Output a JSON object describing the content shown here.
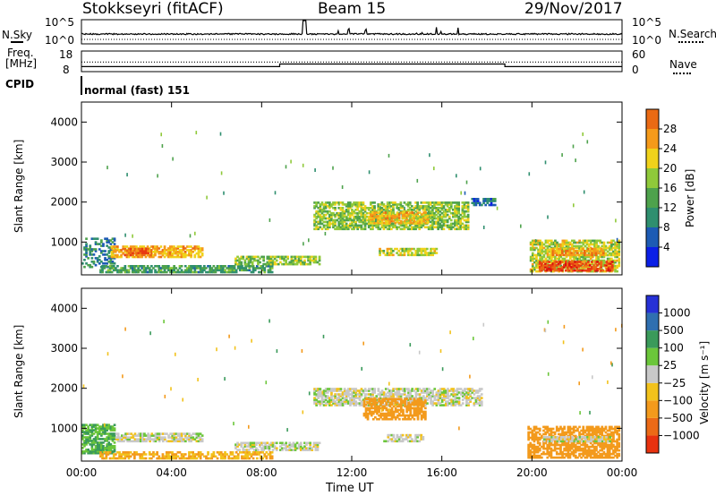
{
  "header": {
    "station": "Stokkseyri (fitACF)",
    "beam": "Beam 15",
    "date": "29/Nov/2017"
  },
  "noise_panel": {
    "left_label": "N.Sky",
    "left_ticks": [
      "10^5",
      "10^0"
    ],
    "right_label": "N.Search",
    "right_ticks": [
      "10^5",
      "10^0"
    ]
  },
  "freq_panel": {
    "left_label_1": "Freq.",
    "left_label_2": "[MHz]",
    "left_ticks": [
      "18",
      "8"
    ],
    "right_label": "Nave",
    "right_ticks": [
      "60",
      "0"
    ]
  },
  "cpid": {
    "label": "CPID",
    "value": "normal (fast) 151"
  },
  "chart_data": [
    {
      "type": "heatmap",
      "name": "power",
      "ylabel": "Slant Range [km]",
      "yticks": [
        "1000",
        "2000",
        "3000",
        "4000"
      ],
      "ylim": [
        180,
        4500
      ],
      "xlim": [
        0,
        24
      ],
      "colorbar": {
        "label": "Power [dB]",
        "ticks": [
          "4",
          "8",
          "12",
          "16",
          "20",
          "24",
          "28"
        ],
        "range": [
          0,
          32
        ],
        "colors": [
          "#0b1fe6",
          "#1d5bb4",
          "#2f8f6f",
          "#4ea24c",
          "#8fc93a",
          "#f0d21b",
          "#f59a1a",
          "#ea6a14",
          "#e83a12",
          "#d70f0f"
        ]
      },
      "regions": [
        {
          "t": [
            0.0,
            1.5
          ],
          "r": [
            350,
            1100
          ],
          "value": 8,
          "note": "scatter"
        },
        {
          "t": [
            1.3,
            5.4
          ],
          "r": [
            600,
            900
          ],
          "value": 20
        },
        {
          "t": [
            1.8,
            3.0
          ],
          "r": [
            650,
            850
          ],
          "value": 24
        },
        {
          "t": [
            0.8,
            8.5
          ],
          "r": [
            220,
            420
          ],
          "value": 10
        },
        {
          "t": [
            6.8,
            10.6
          ],
          "r": [
            420,
            650
          ],
          "value": 14
        },
        {
          "t": [
            10.3,
            17.2
          ],
          "r": [
            1300,
            2000
          ],
          "value": 14
        },
        {
          "t": [
            12.8,
            15.4
          ],
          "r": [
            1450,
            1750
          ],
          "value": 19
        },
        {
          "t": [
            17.3,
            18.4
          ],
          "r": [
            1900,
            2100
          ],
          "value": 6
        },
        {
          "t": [
            13.2,
            15.8
          ],
          "r": [
            650,
            850
          ],
          "value": 16
        },
        {
          "t": [
            19.9,
            23.9
          ],
          "r": [
            240,
            1050
          ],
          "value": 16
        },
        {
          "t": [
            20.3,
            23.6
          ],
          "r": [
            260,
            520
          ],
          "value": 26
        },
        {
          "t": [
            20.8,
            23.2
          ],
          "r": [
            650,
            850
          ],
          "value": 21
        }
      ]
    },
    {
      "type": "heatmap",
      "name": "velocity",
      "ylabel": "Slant Range [km]",
      "yticks": [
        "1000",
        "2000",
        "3000",
        "4000"
      ],
      "ylim": [
        180,
        4500
      ],
      "xlim": [
        0,
        24
      ],
      "xticks": [
        "00:00",
        "04:00",
        "08:00",
        "12:00",
        "16:00",
        "20:00",
        "00:00"
      ],
      "xlabel": "Time UT",
      "colorbar": {
        "label": "Velocity [m s⁻¹]",
        "ticks": [
          "1000",
          "500",
          "100",
          "25",
          "−25",
          "−100",
          "−500",
          "−1000"
        ],
        "colors": [
          "#2631d6",
          "#2f6fb0",
          "#3a9a5a",
          "#6bc63a",
          "#c8c8c8",
          "#f2c21c",
          "#f39a1c",
          "#ec6a16",
          "#e8320f"
        ]
      },
      "regions": [
        {
          "t": [
            0.0,
            1.5
          ],
          "r": [
            350,
            1100
          ],
          "value": 100
        },
        {
          "t": [
            1.5,
            5.4
          ],
          "r": [
            650,
            880
          ],
          "value": 0
        },
        {
          "t": [
            0.8,
            8.5
          ],
          "r": [
            220,
            420
          ],
          "value": -100
        },
        {
          "t": [
            6.8,
            10.6
          ],
          "r": [
            430,
            650
          ],
          "value": 0
        },
        {
          "t": [
            10.3,
            17.8
          ],
          "r": [
            1550,
            2000
          ],
          "value": 0
        },
        {
          "t": [
            12.5,
            15.3
          ],
          "r": [
            1200,
            1750
          ],
          "value": -150
        },
        {
          "t": [
            13.4,
            15.2
          ],
          "r": [
            650,
            850
          ],
          "value": 0
        },
        {
          "t": [
            19.8,
            23.9
          ],
          "r": [
            240,
            1050
          ],
          "value": -150
        },
        {
          "t": [
            20.5,
            23.5
          ],
          "r": [
            650,
            800
          ],
          "value": 0
        }
      ]
    }
  ],
  "freq_series": {
    "freq_mhz": [
      [
        0,
        11.5
      ],
      [
        8.8,
        11.5
      ],
      [
        8.8,
        13.3
      ],
      [
        18.8,
        13.3
      ],
      [
        18.8,
        11.5
      ],
      [
        24,
        11.5
      ]
    ],
    "nave_level": 40
  }
}
